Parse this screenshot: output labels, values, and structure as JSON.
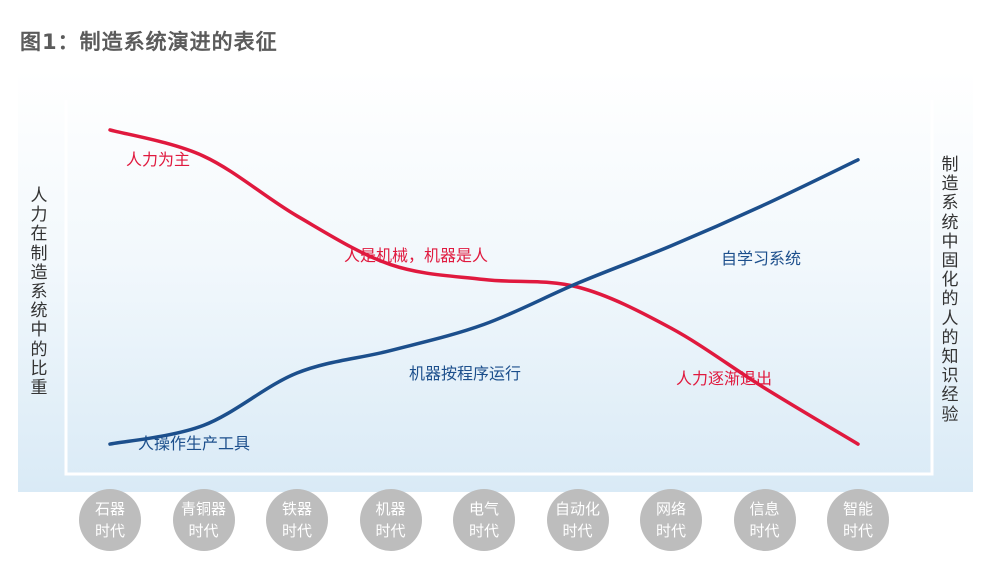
{
  "title": "图1：制造系统演进的表征",
  "left_label": "人力在制造系统中的比重",
  "right_label": "制造系统中固化的人的知识经验",
  "colors": {
    "red": "#e0193e",
    "blue": "#1c4f8c",
    "red_text": "#e0193e",
    "blue_text": "#1c4f8c"
  },
  "chart_data": {
    "type": "line",
    "categories": [
      "石器\n时代",
      "青铜器\n时代",
      "铁器\n时代",
      "机器\n时代",
      "电气\n时代",
      "自动化\n时代",
      "网络\n时代",
      "信息\n时代",
      "智能\n时代"
    ],
    "series": [
      {
        "values": [
          0.92,
          0.85,
          0.69,
          0.56,
          0.52,
          0.5,
          0.39,
          0.23,
          0.08
        ]
      },
      {
        "values": [
          0.08,
          0.13,
          0.27,
          0.33,
          0.4,
          0.51,
          0.61,
          0.72,
          0.84
        ]
      }
    ],
    "annotations": [
      {
        "text": "人力为主",
        "color": "red"
      },
      {
        "text": "人是机械，机器是人",
        "color": "red"
      },
      {
        "text": "人力逐渐退出",
        "color": "red"
      },
      {
        "text": "自学习系统",
        "color": "blue"
      },
      {
        "text": "机器按程序运行",
        "color": "blue"
      },
      {
        "text": "人操作生产工具",
        "color": "blue"
      }
    ]
  }
}
